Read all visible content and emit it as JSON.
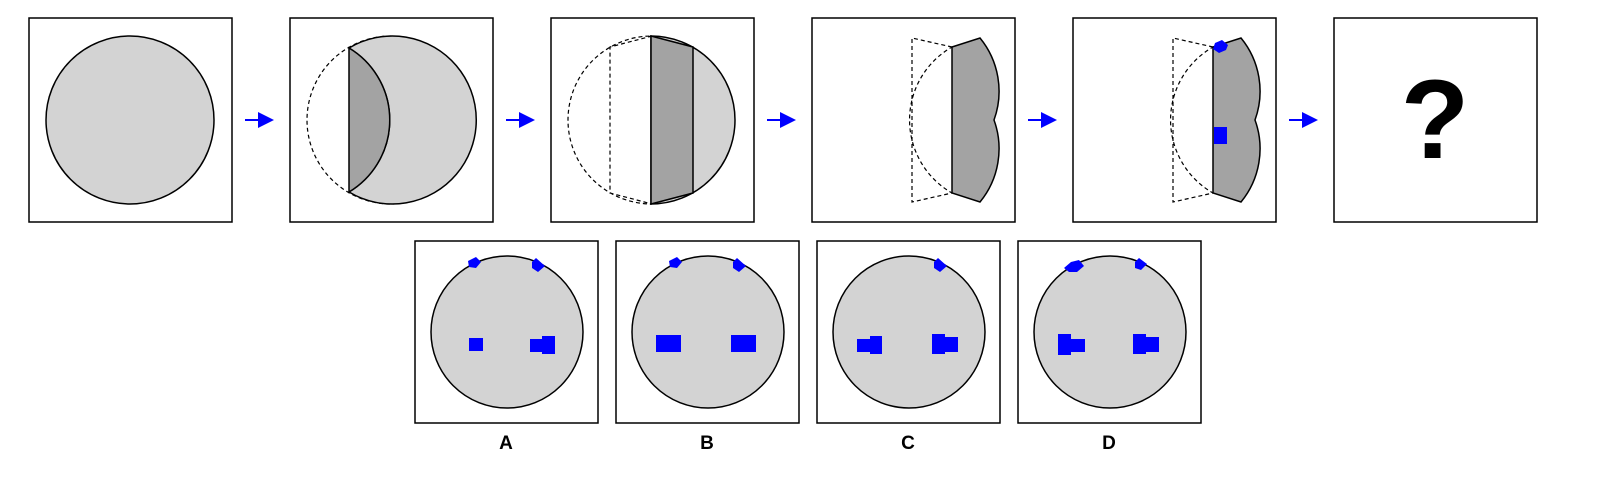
{
  "colors": {
    "disc_fill": "#d3d3d3",
    "fold_fill": "#a3a3a3",
    "marker": "#0000ff",
    "arrow": "#0000ff",
    "outline": "#000000"
  },
  "sequence": {
    "steps": [
      {
        "name": "step-1-full-disc"
      },
      {
        "name": "step-2-first-fold"
      },
      {
        "name": "step-3-second-fold"
      },
      {
        "name": "step-4-third-fold"
      },
      {
        "name": "step-5-punched"
      },
      {
        "name": "step-6-question"
      }
    ],
    "question_mark": "?"
  },
  "options": [
    {
      "label": "A"
    },
    {
      "label": "B"
    },
    {
      "label": "C"
    },
    {
      "label": "D"
    }
  ]
}
